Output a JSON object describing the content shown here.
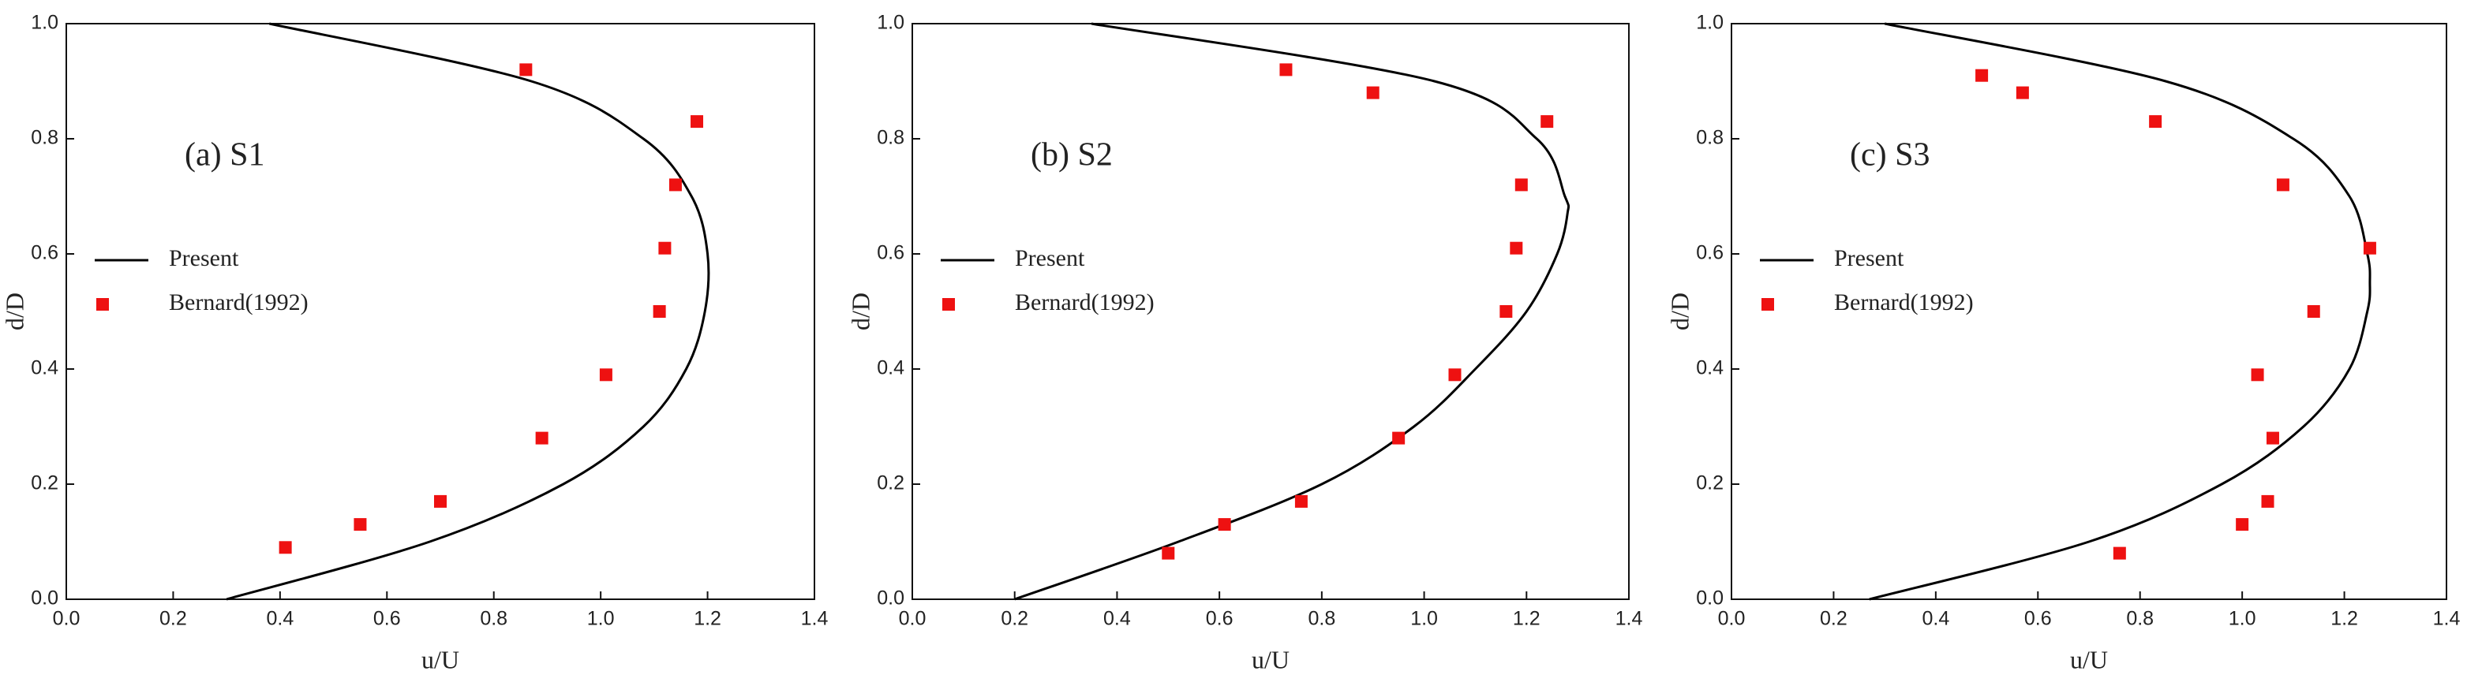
{
  "chart_data": [
    {
      "type": "line",
      "annotation": "(a) S1",
      "xlabel": "u/U",
      "ylabel": "d/D",
      "legend": "center left",
      "xlim": [
        0,
        1.4
      ],
      "ylim": [
        0,
        1
      ],
      "xticks": [
        {
          "value": 0,
          "label": "0.0"
        },
        0.2,
        0.4,
        0.6,
        0.8,
        {
          "value": 1,
          "label": "1.0"
        },
        1.2,
        1.4
      ],
      "yticks": [
        {
          "value": 0,
          "label": "0.0"
        },
        0.2,
        0.4,
        0.6,
        0.8,
        {
          "value": 1,
          "label": "1.0"
        }
      ],
      "series": [
        {
          "name": "Present",
          "color": "#000000",
          "kind": "line",
          "x": [
            0.3,
            0.68,
            0.93,
            1.08,
            1.16,
            1.195,
            1.2,
            1.17,
            1.08,
            0.87,
            0.38
          ],
          "values": [
            0,
            0.1,
            0.2,
            0.3,
            0.4,
            0.5,
            0.6,
            0.7,
            0.8,
            0.9,
            1.0
          ]
        },
        {
          "name": "Bernard(1992)",
          "color": "#ee1111",
          "kind": "scatter",
          "x": [
            0.41,
            0.55,
            0.7,
            0.89,
            1.01,
            1.11,
            1.12,
            1.14,
            1.18,
            0.86
          ],
          "values": [
            0.09,
            0.13,
            0.17,
            0.28,
            0.39,
            0.5,
            0.61,
            0.72,
            0.83,
            0.92
          ]
        }
      ]
    },
    {
      "type": "line",
      "annotation": "(b) S2",
      "xlabel": "u/U",
      "ylabel": "d/D",
      "legend": "center left",
      "xlim": [
        0,
        1.4
      ],
      "ylim": [
        0,
        1
      ],
      "xticks": [
        {
          "value": 0,
          "label": "0.0"
        },
        0.2,
        0.4,
        0.6,
        0.8,
        {
          "value": 1,
          "label": "1.0"
        },
        1.2,
        1.4
      ],
      "yticks": [
        {
          "value": 0,
          "label": "0.0"
        },
        0.2,
        0.4,
        0.6,
        0.8,
        {
          "value": 1,
          "label": "1.0"
        }
      ],
      "series": [
        {
          "name": "Present",
          "color": "#000000",
          "kind": "line",
          "x": [
            0.2,
            0.52,
            0.8,
            0.98,
            1.1,
            1.2,
            1.26,
            1.28,
            1.275,
            1.22,
            1.02,
            0.35
          ],
          "values": [
            0,
            0.1,
            0.2,
            0.3,
            0.4,
            0.5,
            0.6,
            0.67,
            0.7,
            0.8,
            0.9,
            1.0
          ]
        },
        {
          "name": "Bernard(1992)",
          "color": "#ee1111",
          "kind": "scatter",
          "x": [
            0.5,
            0.61,
            0.76,
            0.95,
            1.06,
            1.16,
            1.18,
            1.19,
            1.24,
            0.9,
            0.73
          ],
          "values": [
            0.08,
            0.13,
            0.17,
            0.28,
            0.39,
            0.5,
            0.61,
            0.72,
            0.83,
            0.88,
            0.92
          ]
        }
      ]
    },
    {
      "type": "line",
      "annotation": "(c) S3",
      "xlabel": "u/U",
      "ylabel": "d/D",
      "legend": "center left",
      "xlim": [
        0,
        1.4
      ],
      "ylim": [
        0,
        1
      ],
      "xticks": [
        {
          "value": 0,
          "label": "0.0"
        },
        0.2,
        0.4,
        0.6,
        0.8,
        {
          "value": 1,
          "label": "1.0"
        },
        1.2,
        1.4
      ],
      "yticks": [
        {
          "value": 0,
          "label": "0.0"
        },
        0.2,
        0.4,
        0.6,
        0.8,
        {
          "value": 1,
          "label": "1.0"
        }
      ],
      "series": [
        {
          "name": "Present",
          "color": "#000000",
          "kind": "line",
          "x": [
            0.27,
            0.7,
            0.96,
            1.12,
            1.21,
            1.245,
            1.25,
            1.245,
            1.21,
            1.1,
            0.85,
            0.3
          ],
          "values": [
            0,
            0.1,
            0.2,
            0.3,
            0.4,
            0.5,
            0.55,
            0.6,
            0.7,
            0.8,
            0.9,
            1.0
          ]
        },
        {
          "name": "Bernard(1992)",
          "color": "#ee1111",
          "kind": "scatter",
          "x": [
            0.76,
            1.0,
            1.05,
            1.06,
            1.03,
            1.14,
            1.25,
            1.08,
            0.83,
            0.57,
            0.49
          ],
          "values": [
            0.08,
            0.13,
            0.17,
            0.28,
            0.39,
            0.5,
            0.61,
            0.72,
            0.83,
            0.88,
            0.91
          ]
        }
      ]
    }
  ]
}
